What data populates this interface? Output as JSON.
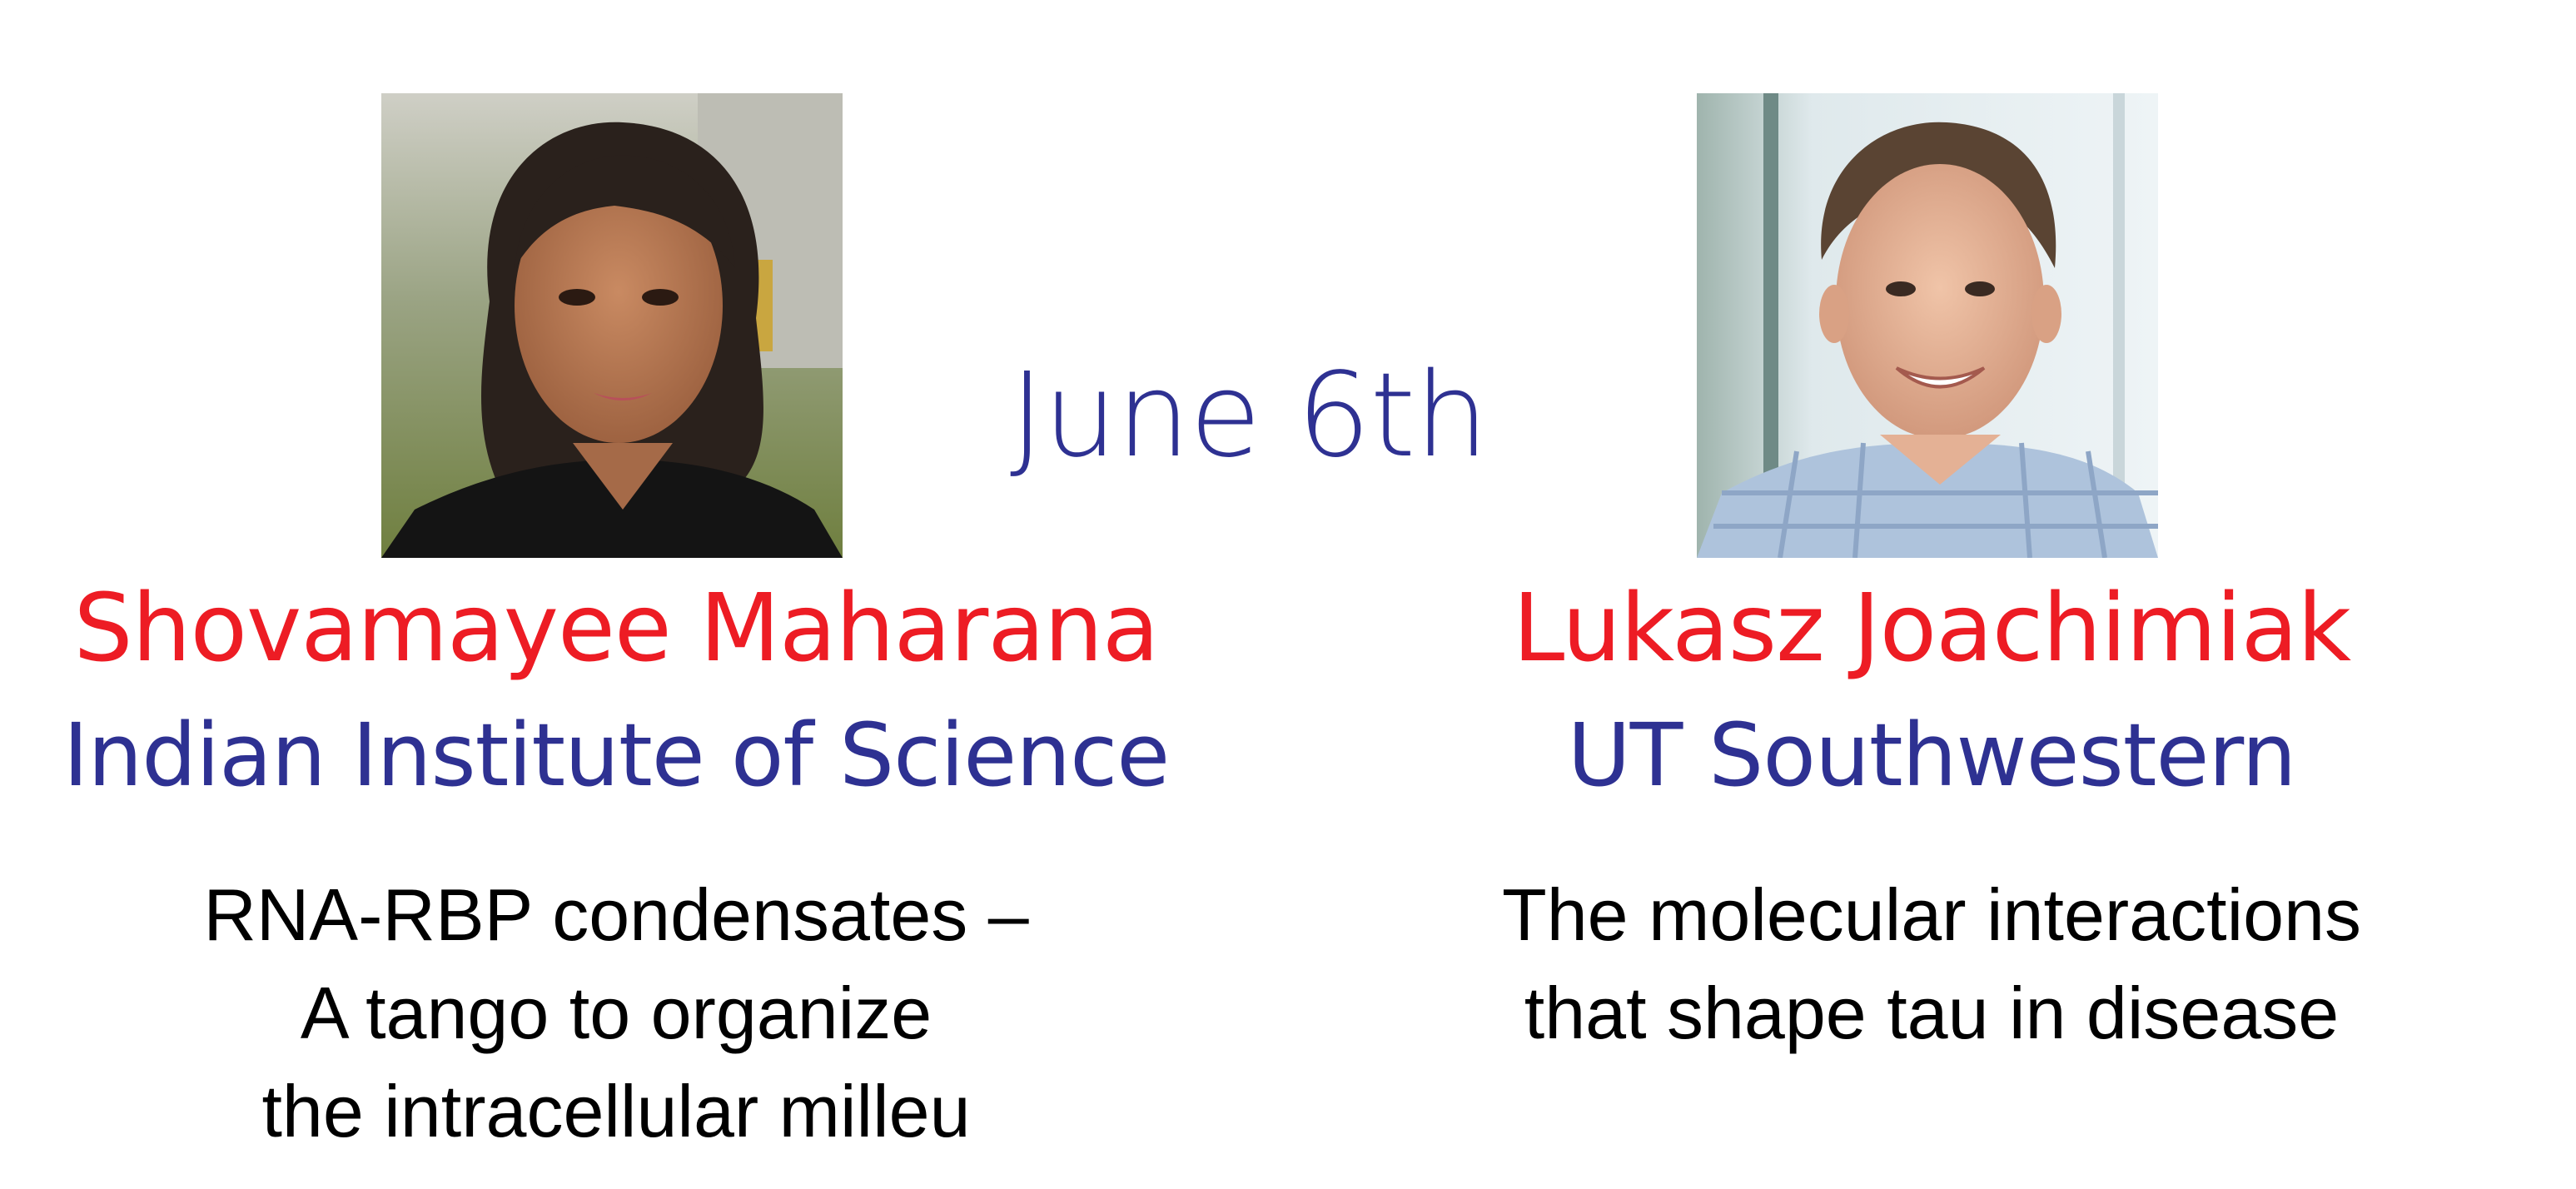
{
  "date": "June 6th",
  "speakers": [
    {
      "photo": "portrait-photo-woman",
      "name": "Shovamayee Maharana",
      "affiliation": "Indian Institute of Science",
      "talk_lines": [
        "RNA-RBP condensates –",
        "A tango to organize",
        "the intracellular milleu"
      ]
    },
    {
      "photo": "portrait-photo-man",
      "name": "Lukasz Joachimiak",
      "affiliation": "UT Southwestern",
      "talk_lines": [
        "The molecular interactions",
        "that shape tau in disease"
      ]
    }
  ],
  "colors": {
    "name": "#ed1c24",
    "accent": "#2e3192",
    "text": "#000000"
  }
}
